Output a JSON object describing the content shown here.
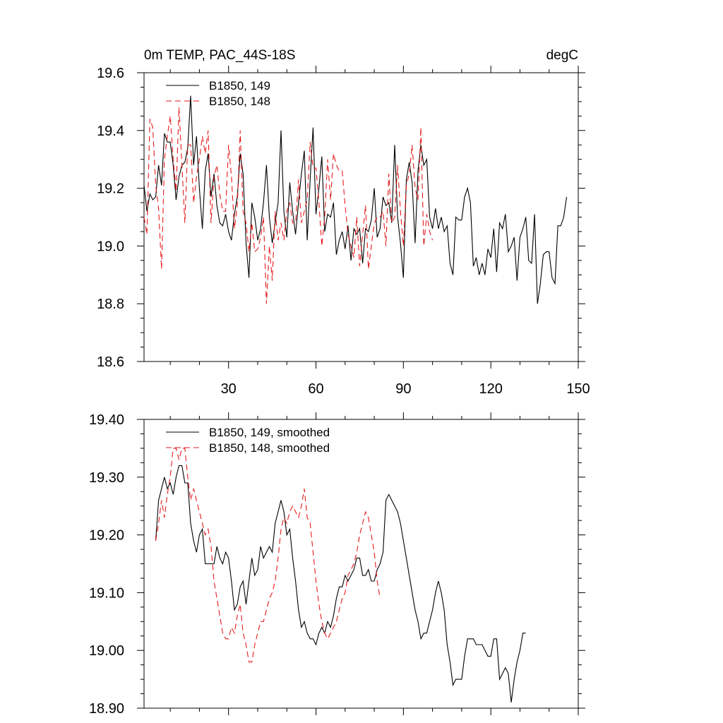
{
  "figure": {
    "title_left": "0m TEMP, PAC_44S-18S",
    "title_right": "degC"
  },
  "chart_data": [
    {
      "type": "line",
      "xlim": [
        1,
        150
      ],
      "ylim": [
        18.6,
        19.6
      ],
      "yticks": [
        18.6,
        18.8,
        19.0,
        19.2,
        19.4,
        19.6
      ],
      "ytick_labels": [
        "18.6",
        "18.8",
        "19.0",
        "19.2",
        "19.4",
        "19.6"
      ],
      "xticks": [
        30,
        60,
        90,
        120,
        150
      ],
      "xtick_labels": [
        "30",
        "60",
        "90",
        "120",
        "150"
      ],
      "show_xtick_labels": true,
      "legend": [
        "B1850, 149",
        "B1850, 148"
      ],
      "legend_position": "top-left",
      "series": [
        {
          "name": "B1850, 149",
          "color": "#000000",
          "style": "solid",
          "x_start": 1,
          "values": [
            19.21,
            19.12,
            19.18,
            19.16,
            19.17,
            19.28,
            19.21,
            19.39,
            19.36,
            19.36,
            19.28,
            19.16,
            19.24,
            19.28,
            19.29,
            19.34,
            19.52,
            19.28,
            19.38,
            19.2,
            19.06,
            19.26,
            19.32,
            19.17,
            19.25,
            19.14,
            19.08,
            19.07,
            19.11,
            19.05,
            19.02,
            19.11,
            19.17,
            19.32,
            19.25,
            19.01,
            18.89,
            19.15,
            19.1,
            19.02,
            19.06,
            19.15,
            19.28,
            19.1,
            19.01,
            19.08,
            19.15,
            19.4,
            19.12,
            19.03,
            19.22,
            19.12,
            19.04,
            19.15,
            19.25,
            19.33,
            19.02,
            19.23,
            19.41,
            19.11,
            19.2,
            19.31,
            19.05,
            19.11,
            19.1,
            19.15,
            18.97,
            19.02,
            19.05,
            18.99,
            19.07,
            18.95,
            19.06,
            19.04,
            19.06,
            18.94,
            19.06,
            19.05,
            19.09,
            19.2,
            19.03,
            19.06,
            19.17,
            19.14,
            19.15,
            19.08,
            19.35,
            19.1,
            19.01,
            18.89,
            19.23,
            19.29,
            19.22,
            19.01,
            19.26,
            19.35,
            19.28,
            19.3,
            19.1,
            19.06,
            19.13,
            19.06,
            19.1,
            19.05,
            19.07,
            18.94,
            18.9,
            19.1,
            19.09,
            19.09,
            19.17,
            19.2,
            19.15,
            18.93,
            18.96,
            18.9,
            18.94,
            18.9,
            18.99,
            18.96,
            19.06,
            18.91,
            19.08,
            19.06,
            19.11,
            18.98,
            19.0,
            19.03,
            18.88,
            19.03,
            19.06,
            19.1,
            18.95,
            18.94,
            19.11,
            18.8,
            18.87,
            18.97,
            18.98,
            18.98,
            18.89,
            18.87,
            19.07,
            19.07,
            19.1,
            19.17
          ]
        },
        {
          "name": "B1850, 148",
          "color": "#e41a1c",
          "style": "dashed",
          "x_start": 1,
          "values": [
            19.1,
            19.04,
            19.44,
            19.41,
            19.21,
            19.13,
            18.92,
            19.3,
            19.38,
            19.45,
            19.3,
            19.19,
            19.48,
            19.28,
            19.08,
            19.35,
            19.35,
            19.15,
            19.24,
            19.3,
            19.38,
            19.32,
            19.4,
            19.08,
            19.24,
            19.28,
            19.18,
            19.12,
            19.12,
            19.35,
            19.24,
            19.06,
            19.14,
            19.4,
            19.12,
            19.08,
            18.98,
            19.08,
            18.98,
            18.99,
            19.03,
            19.1,
            18.8,
            19.0,
            18.88,
            19.12,
            19.02,
            19.08,
            19.02,
            19.12,
            19.15,
            19.08,
            19.08,
            19.23,
            19.08,
            19.12,
            19.16,
            19.36,
            19.27,
            19.27,
            19.15,
            19.0,
            19.1,
            19.3,
            19.16,
            19.32,
            19.28,
            19.26,
            19.26,
            19.14,
            19.04,
            19.0,
            18.96,
            19.1,
            18.93,
            19.04,
            19.14,
            18.92,
            19.0,
            19.08,
            19.1,
            19.1,
            19.12,
            19.0,
            19.25,
            19.08,
            19.1,
            19.28,
            19.12,
            19.0,
            19.21,
            19.25,
            19.35,
            19.2,
            19.16,
            19.41,
            19.0,
            19.11,
            19.05,
            19.02
          ]
        }
      ]
    },
    {
      "type": "line",
      "xlim": [
        1,
        150
      ],
      "ylim": [
        18.9,
        19.4
      ],
      "yticks": [
        18.9,
        19.0,
        19.1,
        19.2,
        19.3,
        19.4
      ],
      "ytick_labels": [
        "18.90",
        "19.00",
        "19.10",
        "19.20",
        "19.30",
        "19.40"
      ],
      "xticks": [
        30,
        60,
        90,
        120,
        150
      ],
      "xtick_labels": [
        "30",
        "60",
        "90",
        "120",
        "150"
      ],
      "show_xtick_labels": false,
      "legend": [
        "B1850, 149, smoothed",
        "B1850, 148, smoothed"
      ],
      "legend_position": "top-left",
      "series": [
        {
          "name": "B1850, 149, smoothed",
          "color": "#000000",
          "style": "solid",
          "x_start": 5,
          "values": [
            19.19,
            19.26,
            19.28,
            19.3,
            19.28,
            19.29,
            19.27,
            19.3,
            19.32,
            19.32,
            19.29,
            19.29,
            19.22,
            19.19,
            19.17,
            19.2,
            19.21,
            19.15,
            19.15,
            19.15,
            19.15,
            19.18,
            19.16,
            19.15,
            19.17,
            19.16,
            19.12,
            19.07,
            19.08,
            19.11,
            19.12,
            19.08,
            19.12,
            19.16,
            19.13,
            19.14,
            19.18,
            19.16,
            19.17,
            19.18,
            19.17,
            19.22,
            19.24,
            19.26,
            19.24,
            19.2,
            19.21,
            19.16,
            19.12,
            19.07,
            19.04,
            19.05,
            19.03,
            19.02,
            19.02,
            19.01,
            19.03,
            19.04,
            19.03,
            19.05,
            19.04,
            19.06,
            19.09,
            19.11,
            19.11,
            19.13,
            19.12,
            19.13,
            19.14,
            19.16,
            19.16,
            19.13,
            19.13,
            19.14,
            19.12,
            19.12,
            19.14,
            19.15,
            19.17,
            19.26,
            19.27,
            19.26,
            19.25,
            19.24,
            19.22,
            19.19,
            19.16,
            19.13,
            19.1,
            19.07,
            19.05,
            19.02,
            19.03,
            19.03,
            19.05,
            19.07,
            19.1,
            19.12,
            19.1,
            19.07,
            19.01,
            18.98,
            18.94,
            18.95,
            18.95,
            18.95,
            18.99,
            19.02,
            19.02,
            19.02,
            19.01,
            19.01,
            19.01,
            19.0,
            18.99,
            18.99,
            19.02,
            19.02,
            18.95,
            18.96,
            18.97,
            18.96,
            18.91,
            18.95,
            18.98,
            19.0,
            19.03,
            19.03
          ]
        },
        {
          "name": "B1850, 148, smoothed",
          "color": "#e41a1c",
          "style": "dashed",
          "x_start": 5,
          "values": [
            19.19,
            19.22,
            19.26,
            19.23,
            19.27,
            19.3,
            19.35,
            19.35,
            19.33,
            19.35,
            19.35,
            19.3,
            19.26,
            19.28,
            19.26,
            19.24,
            19.22,
            19.2,
            19.21,
            19.18,
            19.12,
            19.09,
            19.06,
            19.03,
            19.02,
            19.02,
            19.04,
            19.03,
            19.06,
            19.08,
            19.03,
            19.01,
            18.98,
            18.98,
            19.01,
            19.03,
            19.05,
            19.05,
            19.07,
            19.09,
            19.1,
            19.12,
            19.16,
            19.21,
            19.23,
            19.22,
            19.24,
            19.25,
            19.24,
            19.23,
            19.25,
            19.28,
            19.23,
            19.22,
            19.17,
            19.12,
            19.08,
            19.05,
            19.03,
            19.02,
            19.03,
            19.04,
            19.05,
            19.07,
            19.09,
            19.1,
            19.13,
            19.14,
            19.15,
            19.17,
            19.2,
            19.22,
            19.24,
            19.23,
            19.2,
            19.17,
            19.12,
            19.09
          ]
        }
      ]
    }
  ]
}
